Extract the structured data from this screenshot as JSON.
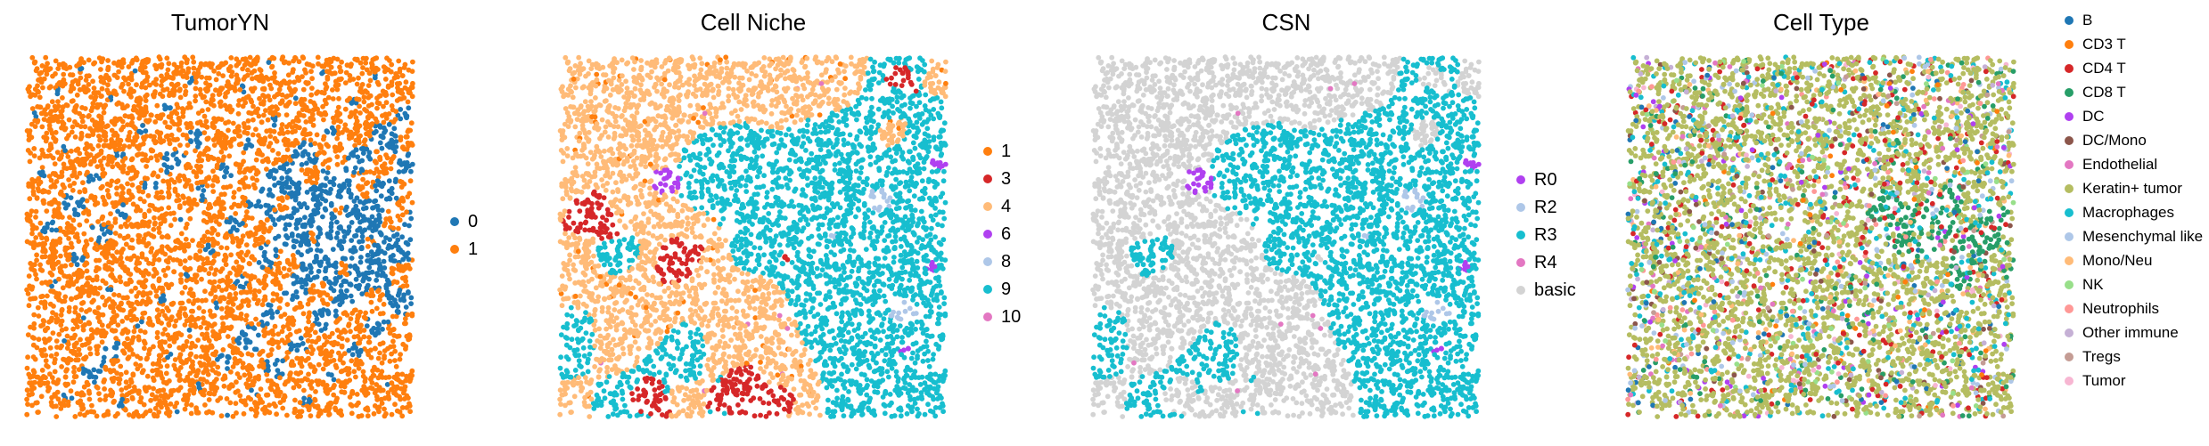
{
  "panels": [
    {
      "title": "TumorYN",
      "legend": [
        {
          "label": "0",
          "color": "#1f77b4"
        },
        {
          "label": "1",
          "color": "#ff7f0e"
        }
      ]
    },
    {
      "title": "Cell Niche",
      "legend": [
        {
          "label": "1",
          "color": "#ff7f0e"
        },
        {
          "label": "3",
          "color": "#d62728"
        },
        {
          "label": "4",
          "color": "#ffbb78"
        },
        {
          "label": "6",
          "color": "#b040f0"
        },
        {
          "label": "8",
          "color": "#aec7e8"
        },
        {
          "label": "9",
          "color": "#17becf"
        },
        {
          "label": "10",
          "color": "#e377c2"
        }
      ]
    },
    {
      "title": "CSN",
      "legend": [
        {
          "label": "R0",
          "color": "#b040f0"
        },
        {
          "label": "R2",
          "color": "#aec7e8"
        },
        {
          "label": "R3",
          "color": "#17becf"
        },
        {
          "label": "R4",
          "color": "#e377c2"
        },
        {
          "label": "basic",
          "color": "#d3d3d3"
        }
      ]
    },
    {
      "title": "Cell Type",
      "legend": [
        {
          "label": "B",
          "color": "#1f77b4"
        },
        {
          "label": "CD3 T",
          "color": "#ff7f0e"
        },
        {
          "label": "CD4 T",
          "color": "#d62728"
        },
        {
          "label": "CD8 T",
          "color": "#279e68"
        },
        {
          "label": "DC",
          "color": "#b040f0"
        },
        {
          "label": "DC/Mono",
          "color": "#8c564b"
        },
        {
          "label": "Endothelial",
          "color": "#e377c2"
        },
        {
          "label": "Keratin+ tumor",
          "color": "#b5bd61"
        },
        {
          "label": "Macrophages",
          "color": "#17becf"
        },
        {
          "label": "Mesenchymal like",
          "color": "#aec7e8"
        },
        {
          "label": "Mono/Neu",
          "color": "#ffbb78"
        },
        {
          "label": "NK",
          "color": "#98df8a"
        },
        {
          "label": "Neutrophils",
          "color": "#ff9896"
        },
        {
          "label": "Other immune",
          "color": "#c5b0d5"
        },
        {
          "label": "Tregs",
          "color": "#c49c94"
        },
        {
          "label": "Tumor",
          "color": "#f7b6d2"
        }
      ]
    }
  ],
  "chart_data": [
    {
      "type": "scatter",
      "title": "TumorYN",
      "xlabel": "",
      "ylabel": "",
      "grid": false,
      "axes": "off",
      "legend_position": "right",
      "series": [
        {
          "name": "0",
          "color": "#1f77b4"
        },
        {
          "name": "1",
          "color": "#ff7f0e"
        }
      ],
      "note": "spatial cell scatter; individual cell coordinates are not labeled"
    },
    {
      "type": "scatter",
      "title": "Cell Niche",
      "xlabel": "",
      "ylabel": "",
      "grid": false,
      "axes": "off",
      "legend_position": "right",
      "series": [
        {
          "name": "1",
          "color": "#ff7f0e"
        },
        {
          "name": "3",
          "color": "#d62728"
        },
        {
          "name": "4",
          "color": "#ffbb78"
        },
        {
          "name": "6",
          "color": "#b040f0"
        },
        {
          "name": "8",
          "color": "#aec7e8"
        },
        {
          "name": "9",
          "color": "#17becf"
        },
        {
          "name": "10",
          "color": "#e377c2"
        }
      ]
    },
    {
      "type": "scatter",
      "title": "CSN",
      "xlabel": "",
      "ylabel": "",
      "grid": false,
      "axes": "off",
      "legend_position": "right",
      "series": [
        {
          "name": "R0",
          "color": "#b040f0"
        },
        {
          "name": "R2",
          "color": "#aec7e8"
        },
        {
          "name": "R3",
          "color": "#17becf"
        },
        {
          "name": "R4",
          "color": "#e377c2"
        },
        {
          "name": "basic",
          "color": "#d3d3d3"
        }
      ]
    },
    {
      "type": "scatter",
      "title": "Cell Type",
      "xlabel": "",
      "ylabel": "",
      "grid": false,
      "axes": "off",
      "legend_position": "right",
      "series": [
        {
          "name": "B",
          "color": "#1f77b4"
        },
        {
          "name": "CD3 T",
          "color": "#ff7f0e"
        },
        {
          "name": "CD4 T",
          "color": "#d62728"
        },
        {
          "name": "CD8 T",
          "color": "#279e68"
        },
        {
          "name": "DC",
          "color": "#b040f0"
        },
        {
          "name": "DC/Mono",
          "color": "#8c564b"
        },
        {
          "name": "Endothelial",
          "color": "#e377c2"
        },
        {
          "name": "Keratin+ tumor",
          "color": "#b5bd61"
        },
        {
          "name": "Macrophages",
          "color": "#17becf"
        },
        {
          "name": "Mesenchymal like",
          "color": "#aec7e8"
        },
        {
          "name": "Mono/Neu",
          "color": "#ffbb78"
        },
        {
          "name": "NK",
          "color": "#98df8a"
        },
        {
          "name": "Neutrophils",
          "color": "#ff9896"
        },
        {
          "name": "Other immune",
          "color": "#c5b0d5"
        },
        {
          "name": "Tregs",
          "color": "#c49c94"
        },
        {
          "name": "Tumor",
          "color": "#f7b6d2"
        }
      ]
    }
  ]
}
